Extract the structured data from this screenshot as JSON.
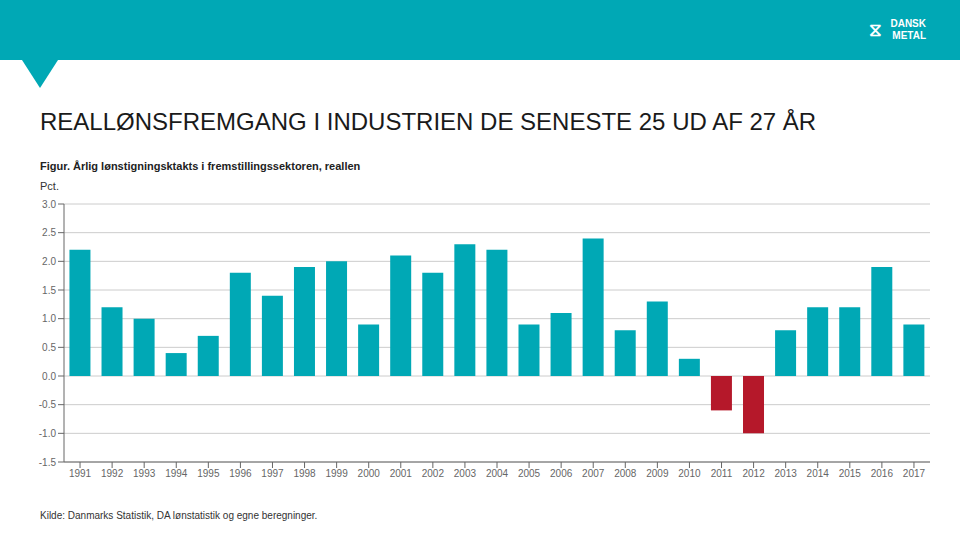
{
  "chart_data": {
    "type": "bar",
    "title": "REALLØNSFREMGANG I INDUSTRIEN DE SENESTE 25 UD AF 27 ÅR",
    "subtitle": "Figur. Årlig lønstigningsktakts i fremstillingssektoren, reallen",
    "y_label": "Pct.",
    "source": "Kilde: Danmarks Statistik, DA lønstatistik og egne beregninger.",
    "annotations": [
      "⧖",
      "DANSK\nMETAL"
    ],
    "categories": [
      "1991",
      "1992",
      "1993",
      "1994",
      "1995",
      "1996",
      "1997",
      "1998",
      "1999",
      "2000",
      "2001",
      "2002",
      "2003",
      "2004",
      "2005",
      "2006",
      "2007",
      "2008",
      "2009",
      "2010",
      "2011",
      "2012",
      "2013",
      "2014",
      "2015",
      "2016",
      "2017"
    ],
    "values": [
      2.2,
      1.2,
      1.0,
      0.4,
      0.7,
      1.8,
      1.4,
      1.9,
      2.0,
      0.9,
      2.1,
      1.8,
      2.3,
      2.2,
      0.9,
      1.1,
      2.4,
      0.8,
      1.3,
      0.3,
      -0.6,
      -1.0,
      0.8,
      1.2,
      1.2,
      1.9,
      0.9
    ],
    "colors": [
      "#00a8b5",
      "#00a8b5",
      "#00a8b5",
      "#00a8b5",
      "#00a8b5",
      "#00a8b5",
      "#00a8b5",
      "#00a8b5",
      "#00a8b5",
      "#00a8b5",
      "#00a8b5",
      "#00a8b5",
      "#00a8b5",
      "#00a8b5",
      "#00a8b5",
      "#00a8b5",
      "#00a8b5",
      "#00a8b5",
      "#00a8b5",
      "#00a8b5",
      "#b5182a",
      "#b5182a",
      "#00a8b5",
      "#00a8b5",
      "#00a8b5",
      "#00a8b5",
      "#00a8b5"
    ],
    "ylim": [
      -1.5,
      3.0
    ],
    "yticks": [
      -1.5,
      {
        "value": -1.0,
        "label": "-1.0"
      },
      -0.5,
      {
        "value": 0.0,
        "label": "0.0"
      },
      0.5,
      {
        "value": 1.0,
        "label": "1.0"
      },
      1.5,
      {
        "value": 2.0,
        "label": "2.0"
      },
      2.5,
      {
        "value": 3.0,
        "label": "3.0"
      }
    ],
    "grid": true
  }
}
